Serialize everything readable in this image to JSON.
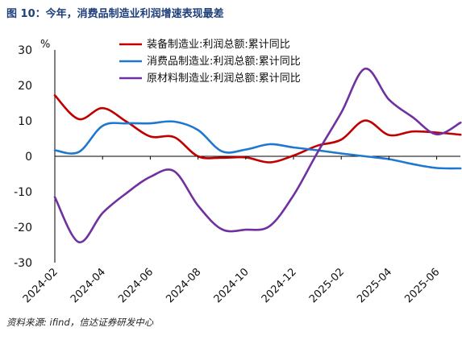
{
  "title": "图 10：今年，消费品制造业利润增速表现最差",
  "source": "资料来源: ifind，信达证券研发中心",
  "chart_data": {
    "type": "line",
    "unit": "%",
    "ylim": [
      -30,
      30
    ],
    "yticks": [
      -30,
      -20,
      -10,
      0,
      10,
      20,
      30
    ],
    "x": [
      "2024-02",
      "2024-03",
      "2024-04",
      "2024-05",
      "2024-06",
      "2024-07",
      "2024-08",
      "2024-09",
      "2024-10",
      "2024-11",
      "2024-12",
      "2025-01",
      "2025-02",
      "2025-03",
      "2025-04",
      "2025-05",
      "2025-06",
      "2025-07"
    ],
    "xtick_labels": [
      "2024-02",
      "2024-04",
      "2024-06",
      "2024-08",
      "2024-10",
      "2024-12",
      "2025-02",
      "2025-04",
      "2025-06"
    ],
    "legend_position": "top-right",
    "series": [
      {
        "name": "装备制造业:利润总额:累计同比",
        "color": "#c00000",
        "values": [
          17.2,
          10.5,
          13.6,
          9.8,
          5.6,
          5.4,
          0.0,
          -0.4,
          -0.3,
          -1.7,
          0.2,
          3.0,
          4.7,
          10.1,
          6.0,
          7.0,
          6.7,
          6.1
        ]
      },
      {
        "name": "消费品制造业:利润总额:累计同比",
        "color": "#1f77d0",
        "values": [
          1.7,
          1.2,
          8.6,
          9.3,
          9.3,
          9.8,
          7.4,
          1.4,
          1.9,
          3.4,
          2.5,
          1.7,
          0.8,
          0.0,
          -0.8,
          -2.2,
          -3.3,
          -3.4
        ]
      },
      {
        "name": "原材料制造业:利润总额:累计同比",
        "color": "#7030a0",
        "values": [
          -11.5,
          -24.2,
          -16.0,
          -10.4,
          -5.8,
          -4.2,
          -13.9,
          -20.6,
          -20.7,
          -19.7,
          -11.0,
          1.0,
          12.3,
          24.7,
          16.0,
          11.0,
          6.2,
          9.5
        ]
      }
    ]
  }
}
